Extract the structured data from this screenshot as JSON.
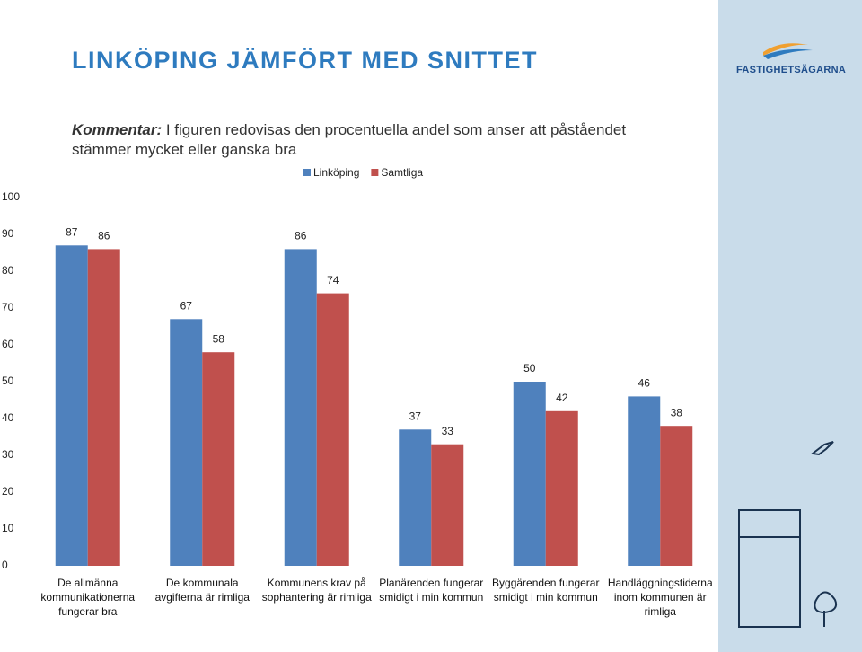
{
  "chart_data": {
    "type": "bar",
    "title": "LINKÖPING JÄMFÖRT MED SNITTET",
    "comment_label": "Kommentar:",
    "comment": "I figuren redovisas den procentuella andel som anser att påståendet stämmer mycket eller ganska bra",
    "categories": [
      "De allmänna\nkommunikationerna\nfungerar bra",
      "De kommunala\navgifterna är rimliga",
      "Kommunens krav på\nsophantering är rimliga",
      "Planärenden fungerar\nsmidigt i min kommun",
      "Byggärenden fungerar\nsmidigt i min kommun",
      "Handläggningstiderna\ninom kommunen är\nrimliga"
    ],
    "series": [
      {
        "name": "Linköping",
        "color": "#4f81bd",
        "values": [
          87,
          67,
          86,
          37,
          50,
          46
        ]
      },
      {
        "name": "Samtliga",
        "color": "#c0504d",
        "values": [
          86,
          58,
          74,
          33,
          42,
          38
        ]
      }
    ],
    "ylim": [
      0,
      100
    ],
    "yticks": [
      0,
      10,
      20,
      30,
      40,
      50,
      60,
      70,
      80,
      90,
      100
    ],
    "grid": false,
    "legend": "top"
  },
  "logo": "FASTIGHETSÄGARNA"
}
